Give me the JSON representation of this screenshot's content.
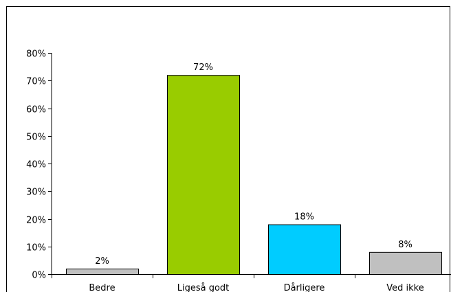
{
  "chart_data": {
    "type": "bar",
    "categories": [
      "Bedre",
      "Ligeså godt",
      "Dårligere",
      "Ved ikke"
    ],
    "values": [
      2,
      72,
      18,
      8
    ],
    "data_labels": [
      "2%",
      "72%",
      "18%",
      "8%"
    ],
    "colors": [
      "#C0C0C0",
      "#99CC00",
      "#00CCFF",
      "#C0C0C0"
    ],
    "ylim": [
      0,
      80
    ],
    "yticks": [
      0,
      10,
      20,
      30,
      40,
      50,
      60,
      70,
      80
    ],
    "ytick_labels": [
      "0%",
      "10%",
      "20%",
      "30%",
      "40%",
      "50%",
      "60%",
      "70%",
      "80%"
    ],
    "title": "",
    "xlabel": "",
    "ylabel": "",
    "grid": false,
    "legend": false
  }
}
